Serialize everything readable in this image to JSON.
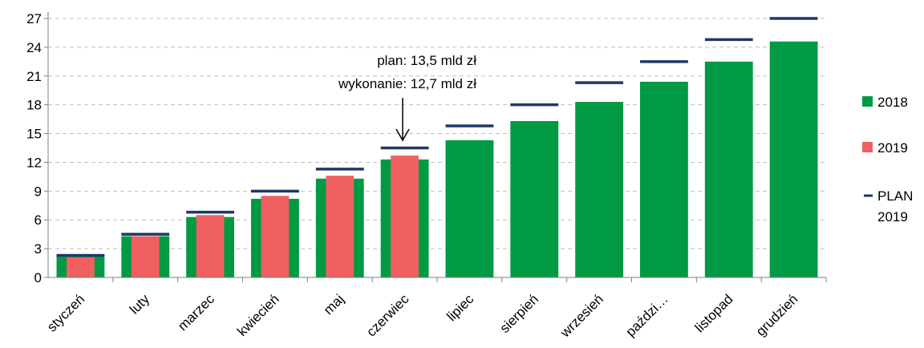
{
  "colors": {
    "s2018": "#009a44",
    "s2019": "#f06060",
    "plan": "#1f3864",
    "grid": "#bfbfbf",
    "axis": "#7f7f7f"
  },
  "chart_data": {
    "type": "bar",
    "categories": [
      "styczeń",
      "luty",
      "marzec",
      "kwiecień",
      "maj",
      "czerwiec",
      "lipiec",
      "sierpień",
      "wrzesień",
      "paździ…",
      "listopad",
      "grudzień"
    ],
    "series": [
      {
        "name": "2018",
        "type": "bar",
        "values": [
          2.3,
          4.3,
          6.3,
          8.2,
          10.3,
          12.3,
          14.3,
          16.3,
          18.3,
          20.4,
          22.5,
          24.6
        ]
      },
      {
        "name": "2019",
        "type": "bar",
        "values": [
          2.1,
          4.3,
          6.5,
          8.5,
          10.6,
          12.7,
          null,
          null,
          null,
          null,
          null,
          null
        ]
      },
      {
        "name": "PLAN 2019",
        "type": "marker-line",
        "values": [
          2.3,
          4.5,
          6.8,
          9.0,
          11.3,
          13.5,
          15.8,
          18.0,
          20.3,
          22.5,
          24.8,
          27.0
        ]
      }
    ],
    "yticks": [
      0,
      3,
      6,
      9,
      12,
      15,
      18,
      21,
      24,
      27
    ],
    "ylim": [
      0,
      27
    ],
    "grid": true,
    "legend_position": "right",
    "annotation": {
      "category": "czerwiec",
      "line1": "plan:  13,5 mld  zł",
      "line2": "wykonanie:  12,7 mld  zł"
    },
    "legend": {
      "s2018": "2018",
      "s2019": "2019",
      "plan_line1": "PLAN",
      "plan_line2": "2019"
    }
  }
}
